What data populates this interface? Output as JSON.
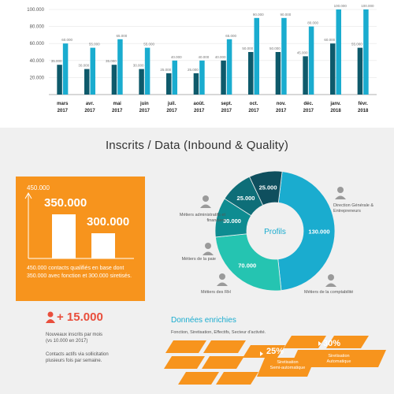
{
  "chart_data": [
    {
      "type": "bar",
      "categories": [
        {
          "m": "mars",
          "y": "2017"
        },
        {
          "m": "avr.",
          "y": "2017"
        },
        {
          "m": "mai",
          "y": "2017"
        },
        {
          "m": "juin",
          "y": "2017"
        },
        {
          "m": "juil.",
          "y": "2017"
        },
        {
          "m": "août.",
          "y": "2017"
        },
        {
          "m": "sept.",
          "y": "2017"
        },
        {
          "m": "oct.",
          "y": "2017"
        },
        {
          "m": "nov.",
          "y": "2017"
        },
        {
          "m": "déc.",
          "y": "2017"
        },
        {
          "m": "janv.",
          "y": "2018"
        },
        {
          "m": "févr.",
          "y": "2018"
        }
      ],
      "series": [
        {
          "values": [
            35000,
            30000,
            35000,
            30000,
            25000,
            25000,
            40000,
            50000,
            50000,
            45000,
            60000,
            55000
          ],
          "labels": [
            "35.000",
            "30.000",
            "35.000",
            "30.000",
            "25.000",
            "25.000",
            "40.000",
            "50.000",
            "50.000",
            "45.000",
            "60.000",
            "55.000"
          ],
          "color": "#0e5a6b"
        },
        {
          "values": [
            60000,
            55000,
            65000,
            55000,
            40000,
            40000,
            65000,
            90000,
            90000,
            80000,
            100000,
            100000
          ],
          "labels": [
            "60.000",
            "55.000",
            "65.000",
            "55.000",
            "40.000",
            "40.000",
            "65.000",
            "90.000",
            "90.000",
            "80.000",
            "100.000",
            "100.000"
          ],
          "color": "#1aaccf"
        }
      ],
      "yticks": [
        "100.000",
        "80.000",
        "60.000",
        "40.000",
        "20.000"
      ],
      "ytick_values": [
        100000,
        80000,
        60000,
        40000,
        20000
      ],
      "ylim": [
        0,
        100000
      ]
    },
    {
      "type": "pie",
      "center_label": "Profils",
      "slices": [
        {
          "value": 130000,
          "label": "130.000",
          "color": "#1aaccf"
        },
        {
          "value": 70000,
          "label": "70.000",
          "color": "#25c4b1"
        },
        {
          "value": 30000,
          "label": "30.000",
          "color": "#0e8c91"
        },
        {
          "value": 25000,
          "label": "25.000",
          "color": "#0e6e78"
        },
        {
          "value": 25000,
          "label": "25.000",
          "color": "#0f4f5e"
        }
      ]
    }
  ],
  "title": "Inscrits / Data (Inbound & Quality)",
  "orange_box": {
    "axis_top": "450.000",
    "bar1": "350.000",
    "bar2": "300.000",
    "desc": "450.000 contacts qualifiés en base dont 350.000 avec fonction et 300.000 siretisés."
  },
  "profiles": {
    "p1": "Métiers administratifs et financiers",
    "p2": "Métiers de la paie",
    "p3": "Métiers des RH",
    "p4": "Direction Générale & Entrepreneurs",
    "p5": "Métiers de la comptabilité"
  },
  "stats": {
    "plus": "+ 15.000",
    "l1": "Nouveaux inscrits par mois",
    "l2": "(vs 10.000 en 2017)",
    "l3": "Contacts actifs via sollicitation",
    "l4": "plusieurs fois par semaine."
  },
  "enrich": {
    "title": "Données enrichies",
    "sub": "Fonction, Siretisation, Effectifs, Secteur d'activité.",
    "pct1": "25%",
    "pct1_l1": "Siretisation",
    "pct1_l2": "Semi-automatique",
    "pct2": "30%",
    "pct2_l1": "Siretisation",
    "pct2_l2": "Automatique"
  },
  "colors": {
    "orange": "#f7941d",
    "teal": "#1aaccf",
    "dark": "#0e5a6b",
    "red": "#e94e3c"
  }
}
